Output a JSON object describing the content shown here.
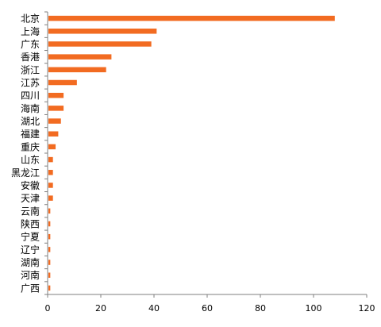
{
  "chart_data": {
    "type": "bar",
    "orientation": "horizontal",
    "categories": [
      "北京",
      "上海",
      "广东",
      "香港",
      "浙江",
      "江苏",
      "四川",
      "海南",
      "湖北",
      "福建",
      "重庆",
      "山东",
      "黑龙江",
      "安徽",
      "天津",
      "云南",
      "陕西",
      "宁夏",
      "辽宁",
      "湖南",
      "河南",
      "广西"
    ],
    "values": [
      108,
      41,
      39,
      24,
      22,
      11,
      6,
      6,
      5,
      4,
      3,
      2,
      2,
      2,
      2,
      1,
      1,
      1,
      1,
      1,
      1,
      1
    ],
    "xlim": [
      0,
      120
    ],
    "xticks": [
      0,
      20,
      40,
      60,
      80,
      100,
      120
    ],
    "grid": false,
    "legend": "none",
    "colors": {
      "bar": "#F26B21",
      "axis": "#7f7f7f"
    }
  }
}
